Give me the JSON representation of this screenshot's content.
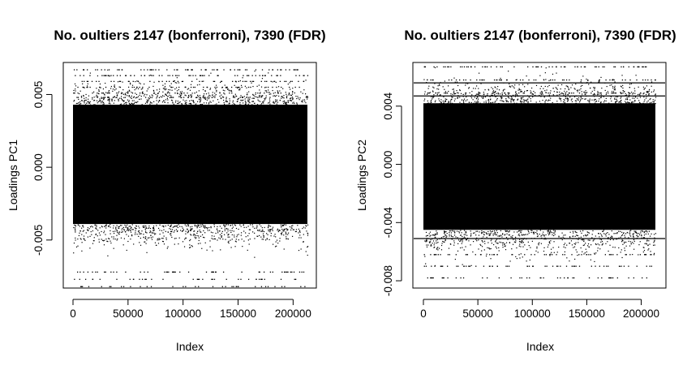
{
  "chart_data": [
    {
      "type": "scatter",
      "title": "No. oultiers 2147 (bonferroni), 7390 (FDR)",
      "xlabel": "Index",
      "ylabel": "Loadings PC1",
      "xlim": [
        0,
        213000
      ],
      "ylim": [
        -0.0083,
        0.0072
      ],
      "x_ticks": [
        0,
        50000,
        100000,
        150000,
        200000
      ],
      "x_tick_labels": [
        "0",
        "50000",
        "100000",
        "150000",
        "200000"
      ],
      "y_ticks": [
        -0.005,
        0.0,
        0.005
      ],
      "y_tick_labels": [
        "-0.005",
        "0.000",
        "0.005"
      ],
      "n_points_approx": 213000,
      "core_band": [
        -0.0039,
        0.0043
      ],
      "discrete_upper_levels": [
        0.0067,
        0.0063,
        0.0059,
        0.0055,
        0.0051,
        0.0048
      ],
      "discrete_lower_levels": [
        -0.0072,
        -0.0077,
        -0.0082
      ],
      "threshold_lines": [],
      "grid": false,
      "legend": "none"
    },
    {
      "type": "scatter",
      "title": "No. oultiers 2147 (bonferroni), 7390 (FDR)",
      "xlabel": "Index",
      "ylabel": "Loadings PC2",
      "xlim": [
        0,
        213000
      ],
      "ylim": [
        -0.0085,
        0.007
      ],
      "x_ticks": [
        0,
        50000,
        100000,
        150000,
        200000
      ],
      "x_tick_labels": [
        "0",
        "50000",
        "100000",
        "150000",
        "200000"
      ],
      "y_ticks": [
        -0.008,
        -0.004,
        0.0,
        0.004
      ],
      "y_tick_labels": [
        "-0.008",
        "-0.004",
        "0.000",
        "0.004"
      ],
      "n_points_approx": 213000,
      "core_band": [
        -0.0045,
        0.0042
      ],
      "discrete_upper_levels": [
        0.0067,
        0.0058,
        0.0049
      ],
      "discrete_lower_levels": [
        -0.0062,
        -0.007,
        -0.0078
      ],
      "threshold_lines": [
        0.0056,
        0.0047,
        -0.0051
      ],
      "grid": false,
      "legend": "none"
    }
  ]
}
